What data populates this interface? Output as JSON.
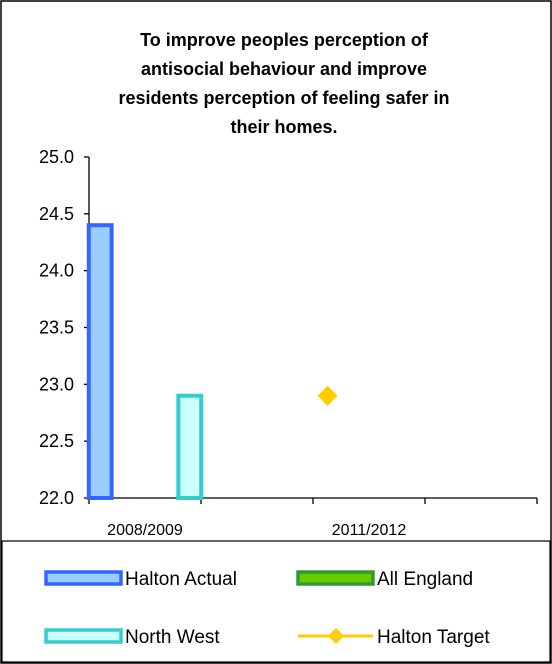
{
  "chart_data": {
    "type": "bar",
    "title_lines": [
      "To improve peoples perception of",
      "antisocial behaviour and improve",
      "residents perception of feeling safer in",
      "their homes."
    ],
    "categories": [
      "2008/2009",
      "",
      "2011/2012",
      ""
    ],
    "ylim": [
      22.0,
      25.0
    ],
    "yticks": [
      "25.0",
      "24.5",
      "24.0",
      "23.5",
      "23.0",
      "22.5",
      "22.0"
    ],
    "grid": false,
    "legend_position": "bottom",
    "series": [
      {
        "name": "Halton Actual",
        "kind": "bar",
        "color": "#99ccff",
        "border": "#3366ff",
        "values": [
          24.4,
          null,
          null,
          null
        ]
      },
      {
        "name": "All England",
        "kind": "bar",
        "color": "#66cc00",
        "border": "#339933",
        "values": [
          null,
          null,
          null,
          null
        ]
      },
      {
        "name": "North West",
        "kind": "bar",
        "color": "#ccffff",
        "border": "#33cccc",
        "values": [
          22.9,
          null,
          null,
          null
        ]
      },
      {
        "name": "Halton Target",
        "kind": "marker",
        "color": "#ffcc00",
        "values": [
          null,
          null,
          22.9,
          null
        ]
      }
    ],
    "legend": [
      {
        "label": "Halton Actual",
        "series": 0
      },
      {
        "label": "All England",
        "series": 1
      },
      {
        "label": "North West",
        "series": 2
      },
      {
        "label": "Halton Target",
        "series": 3
      }
    ]
  }
}
